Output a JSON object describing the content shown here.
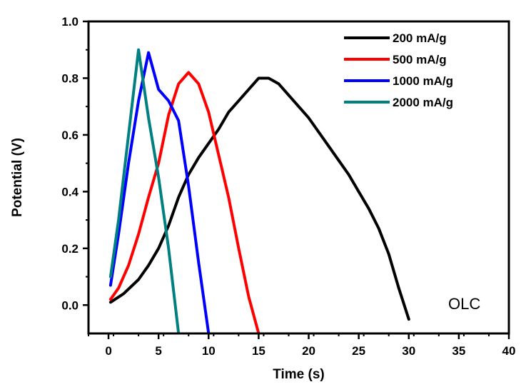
{
  "chart_data": {
    "type": "line",
    "title": "",
    "xlabel": "Time (s)",
    "ylabel": "Potential (V)",
    "xlim": [
      -2,
      40
    ],
    "ylim": [
      -0.1,
      1.0
    ],
    "xticks": [
      0,
      5,
      10,
      15,
      20,
      25,
      30,
      35,
      40
    ],
    "yticks": [
      0.0,
      0.2,
      0.4,
      0.6,
      0.8,
      1.0
    ],
    "xtick_labels": [
      "0",
      "5",
      "10",
      "15",
      "20",
      "25",
      "30",
      "35",
      "40"
    ],
    "ytick_labels": [
      "0.0",
      "0.2",
      "0.4",
      "0.6",
      "0.8",
      "1.0"
    ],
    "grid": false,
    "legend_position": "top-right",
    "annotation": "OLC",
    "series": [
      {
        "name": "200 mA/g",
        "color": "#000000",
        "x": [
          0.2,
          1.5,
          3,
          4,
          5,
          6,
          7,
          8,
          9,
          10,
          11,
          12,
          13,
          14,
          15,
          16,
          17,
          18,
          19,
          20,
          21,
          22,
          23,
          24,
          25,
          26,
          27,
          28,
          29,
          30
        ],
        "y": [
          0.01,
          0.04,
          0.09,
          0.14,
          0.2,
          0.28,
          0.38,
          0.46,
          0.52,
          0.57,
          0.62,
          0.68,
          0.72,
          0.76,
          0.8,
          0.8,
          0.78,
          0.74,
          0.7,
          0.66,
          0.61,
          0.56,
          0.51,
          0.46,
          0.4,
          0.34,
          0.27,
          0.18,
          0.06,
          -0.05
        ]
      },
      {
        "name": "500 mA/g",
        "color": "#ff0000",
        "x": [
          0.2,
          1,
          2,
          3,
          4,
          5,
          6,
          7,
          8,
          9,
          10,
          11,
          12,
          13,
          14,
          15
        ],
        "y": [
          0.02,
          0.06,
          0.14,
          0.25,
          0.38,
          0.5,
          0.67,
          0.78,
          0.82,
          0.78,
          0.68,
          0.53,
          0.38,
          0.2,
          0.03,
          -0.1
        ]
      },
      {
        "name": "1000 mA/g",
        "color": "#0000ff",
        "x": [
          0.2,
          1,
          2,
          3,
          4,
          5,
          6,
          7,
          8,
          9,
          10
        ],
        "y": [
          0.07,
          0.25,
          0.5,
          0.72,
          0.89,
          0.76,
          0.72,
          0.65,
          0.42,
          0.15,
          -0.1
        ]
      },
      {
        "name": "2000 mA/g",
        "color": "#008080",
        "x": [
          0.2,
          1,
          2,
          3,
          4,
          5,
          6,
          7
        ],
        "y": [
          0.1,
          0.3,
          0.6,
          0.9,
          0.66,
          0.45,
          0.2,
          -0.1
        ]
      }
    ]
  }
}
